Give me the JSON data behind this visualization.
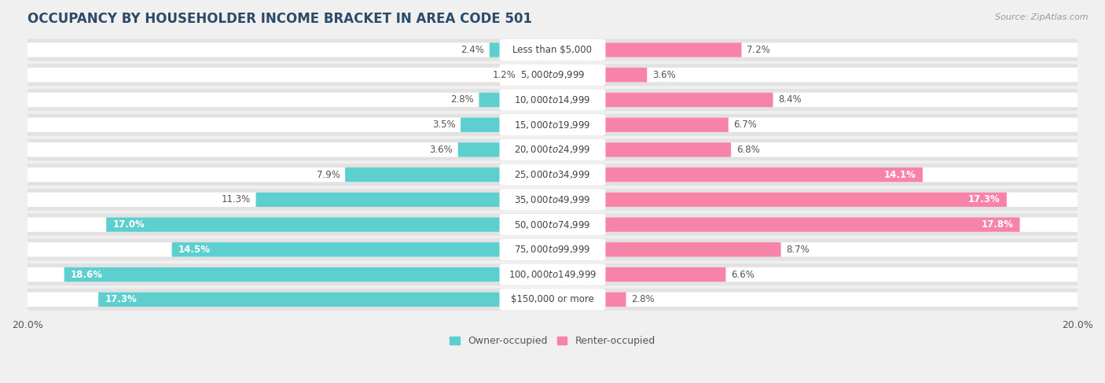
{
  "title": "OCCUPANCY BY HOUSEHOLDER INCOME BRACKET IN AREA CODE 501",
  "source": "Source: ZipAtlas.com",
  "categories": [
    "Less than $5,000",
    "$5,000 to $9,999",
    "$10,000 to $14,999",
    "$15,000 to $19,999",
    "$20,000 to $24,999",
    "$25,000 to $34,999",
    "$35,000 to $49,999",
    "$50,000 to $74,999",
    "$75,000 to $99,999",
    "$100,000 to $149,999",
    "$150,000 or more"
  ],
  "owner_values": [
    2.4,
    1.2,
    2.8,
    3.5,
    3.6,
    7.9,
    11.3,
    17.0,
    14.5,
    18.6,
    17.3
  ],
  "renter_values": [
    7.2,
    3.6,
    8.4,
    6.7,
    6.8,
    14.1,
    17.3,
    17.8,
    8.7,
    6.6,
    2.8
  ],
  "owner_color": "#5ecfcf",
  "renter_color": "#f783a8",
  "background_color": "#f0f0f0",
  "bar_background": "#ffffff",
  "row_background": "#e8e8e8",
  "max_value": 20.0,
  "title_fontsize": 12,
  "label_fontsize": 8.5,
  "value_fontsize": 8.5,
  "tick_fontsize": 9,
  "legend_fontsize": 9
}
